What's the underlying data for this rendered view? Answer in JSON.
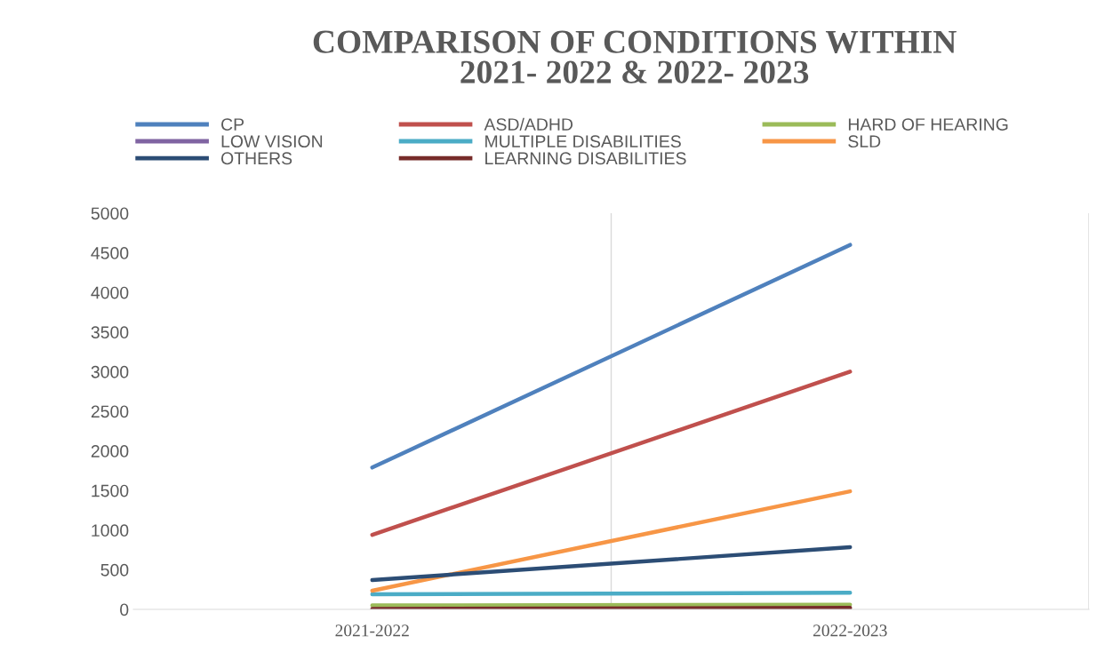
{
  "chart_data": {
    "type": "line",
    "title": "COMPARISON OF CONDITIONS WITHIN\n2021- 2022 & 2022- 2023",
    "categories": [
      "2021-2022",
      "2022-2023"
    ],
    "series": [
      {
        "name": "CP",
        "color": "#4f81bd",
        "values": [
          1790,
          4600
        ]
      },
      {
        "name": "ASD/ADHD",
        "color": "#c0504d",
        "values": [
          940,
          3000
        ]
      },
      {
        "name": "HARD OF HEARING",
        "color": "#9bbb59",
        "values": [
          50,
          60
        ]
      },
      {
        "name": "LOW VISION",
        "color": "#8064a2",
        "values": [
          null,
          null
        ]
      },
      {
        "name": "MULTIPLE DISABILITIES",
        "color": "#4bacc6",
        "values": [
          190,
          210
        ]
      },
      {
        "name": "SLD",
        "color": "#f79646",
        "values": [
          235,
          1490
        ]
      },
      {
        "name": "OTHERS",
        "color": "#2c4d75",
        "values": [
          370,
          785
        ]
      },
      {
        "name": "LEARNING DISABILITIES",
        "color": "#772c2a",
        "values": [
          5,
          20
        ]
      }
    ],
    "ylim": [
      0,
      5000
    ],
    "yticks": [
      0,
      500,
      1000,
      1500,
      2000,
      2500,
      3000,
      3500,
      4000,
      4500,
      5000
    ],
    "grid": "x",
    "legend": "top",
    "marker": "none",
    "line_style": "solid"
  }
}
